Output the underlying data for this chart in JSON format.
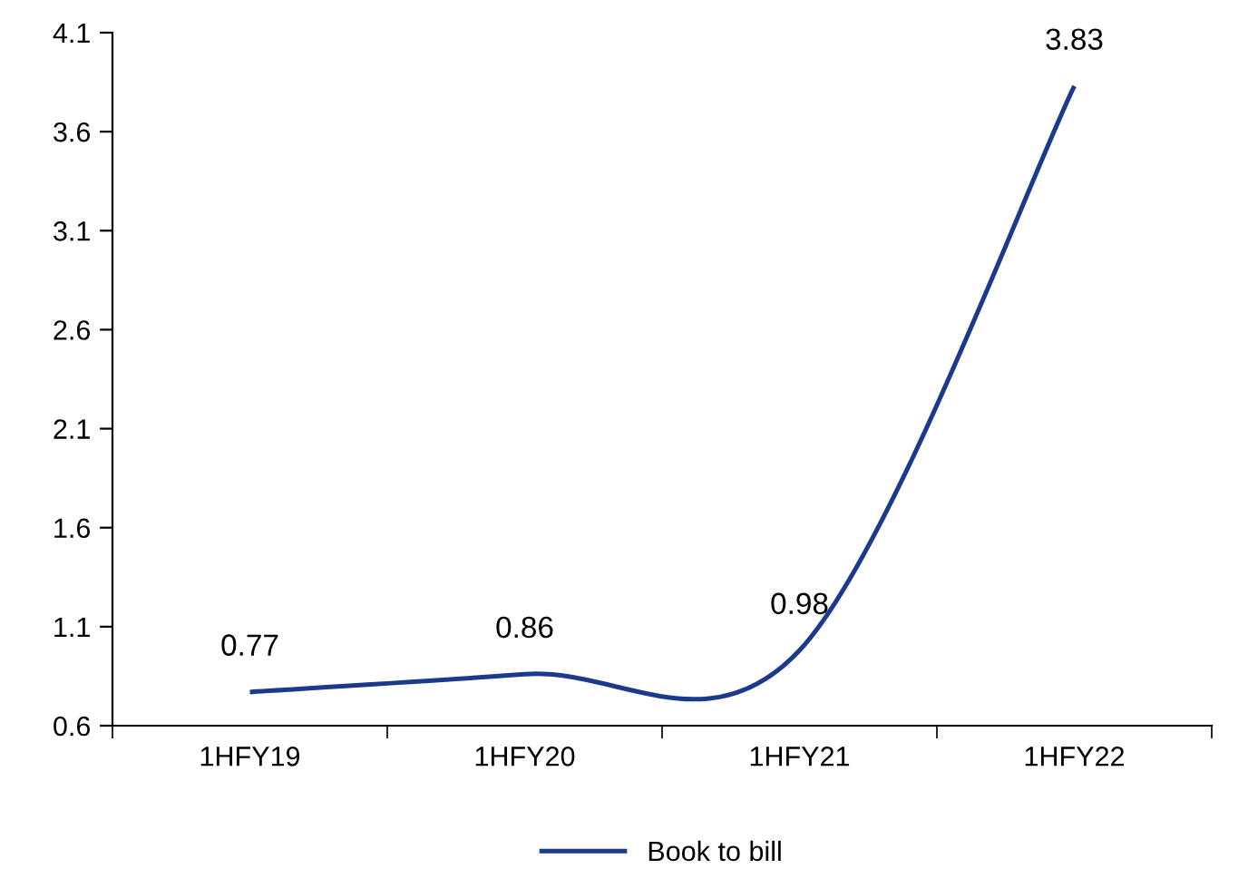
{
  "chart_data": {
    "type": "line",
    "categories": [
      "1HFY19",
      "1HFY20",
      "1HFY21",
      "1HFY22"
    ],
    "series": [
      {
        "name": "Book to bill",
        "color": "#1c3a8c",
        "values": [
          0.77,
          0.86,
          0.98,
          3.83
        ]
      }
    ],
    "ylim": [
      0.6,
      4.1
    ],
    "yticks": [
      0.6,
      1.1,
      1.6,
      2.1,
      2.6,
      3.1,
      3.6,
      4.1
    ],
    "grid": false,
    "legend": "bottom",
    "data_labels": true,
    "marker": "none",
    "line_style": "solid"
  }
}
